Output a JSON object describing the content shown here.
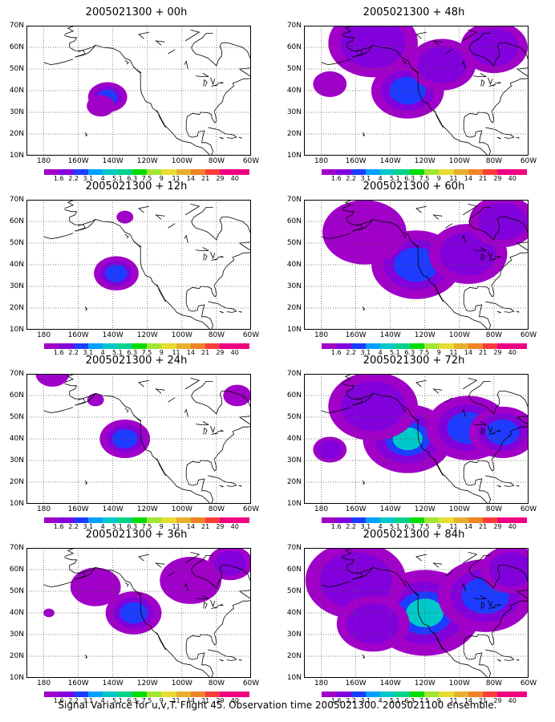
{
  "colorbar": {
    "labels": [
      "1.6",
      "2.2",
      "3.1",
      "4",
      "5.1",
      "6.3",
      "7.5",
      "9",
      "11",
      "14",
      "21",
      "29",
      "40"
    ],
    "colors": [
      "#a000c8",
      "#8200dc",
      "#1e3cff",
      "#00a0ff",
      "#00c8c8",
      "#00d28c",
      "#00dc00",
      "#a0e632",
      "#e6dc32",
      "#e6af2d",
      "#f08228",
      "#fa3c3c",
      "#f00082"
    ]
  },
  "axes": {
    "y_labels": [
      "70N",
      "60N",
      "50N",
      "40N",
      "30N",
      "20N",
      "10N"
    ],
    "x_labels": [
      "180",
      "160W",
      "140W",
      "120W",
      "100W",
      "80W",
      "60W"
    ]
  },
  "panels": [
    {
      "title": "2005021300 + 00h",
      "blobs": [
        {
          "lon": -143,
          "lat": 37,
          "r": 0.7,
          "lvl": 2
        },
        {
          "lon": -147,
          "lat": 33,
          "r": 0.5,
          "lvl": 0
        }
      ]
    },
    {
      "title": "2005021300 + 48h",
      "blobs": [
        {
          "lon": -150,
          "lat": 62,
          "r": 1.6,
          "lvl": 1
        },
        {
          "lon": -130,
          "lat": 40,
          "r": 1.3,
          "lvl": 2
        },
        {
          "lon": -110,
          "lat": 52,
          "r": 1.2,
          "lvl": 1
        },
        {
          "lon": -80,
          "lat": 60,
          "r": 1.2,
          "lvl": 1
        },
        {
          "lon": -175,
          "lat": 43,
          "r": 0.6,
          "lvl": 0
        }
      ]
    },
    {
      "title": "2005021300 + 12h",
      "blobs": [
        {
          "lon": -138,
          "lat": 36,
          "r": 0.8,
          "lvl": 2
        },
        {
          "lon": -133,
          "lat": 62,
          "r": 0.3,
          "lvl": 0
        }
      ]
    },
    {
      "title": "2005021300 + 60h",
      "blobs": [
        {
          "lon": -125,
          "lat": 40,
          "r": 1.6,
          "lvl": 2
        },
        {
          "lon": -155,
          "lat": 55,
          "r": 1.5,
          "lvl": 0
        },
        {
          "lon": -95,
          "lat": 45,
          "r": 1.4,
          "lvl": 1
        },
        {
          "lon": -75,
          "lat": 60,
          "r": 1.2,
          "lvl": 1
        }
      ]
    },
    {
      "title": "2005021300 + 24h",
      "blobs": [
        {
          "lon": -133,
          "lat": 40,
          "r": 0.9,
          "lvl": 2
        },
        {
          "lon": -175,
          "lat": 70,
          "r": 0.6,
          "lvl": 0
        },
        {
          "lon": -68,
          "lat": 60,
          "r": 0.5,
          "lvl": 0
        },
        {
          "lon": -150,
          "lat": 58,
          "r": 0.3,
          "lvl": 0
        }
      ]
    },
    {
      "title": "2005021300 + 72h",
      "blobs": [
        {
          "lon": -130,
          "lat": 40,
          "r": 1.6,
          "lvl": 3
        },
        {
          "lon": -150,
          "lat": 55,
          "r": 1.6,
          "lvl": 1
        },
        {
          "lon": -95,
          "lat": 45,
          "r": 1.5,
          "lvl": 2
        },
        {
          "lon": -75,
          "lat": 43,
          "r": 1.2,
          "lvl": 2
        },
        {
          "lon": -175,
          "lat": 35,
          "r": 0.6,
          "lvl": 1
        }
      ]
    },
    {
      "title": "2005021300 + 36h",
      "blobs": [
        {
          "lon": -128,
          "lat": 40,
          "r": 1.0,
          "lvl": 2
        },
        {
          "lon": -150,
          "lat": 52,
          "r": 0.9,
          "lvl": 0
        },
        {
          "lon": -95,
          "lat": 55,
          "r": 1.1,
          "lvl": 0
        },
        {
          "lon": -72,
          "lat": 63,
          "r": 0.8,
          "lvl": 1
        },
        {
          "lon": -177,
          "lat": 40,
          "r": 0.2,
          "lvl": 0
        }
      ]
    },
    {
      "title": "2005021300 + 84h",
      "blobs": [
        {
          "lon": -120,
          "lat": 40,
          "r": 2.0,
          "lvl": 3
        },
        {
          "lon": -160,
          "lat": 55,
          "r": 1.8,
          "lvl": 1
        },
        {
          "lon": -85,
          "lat": 48,
          "r": 1.7,
          "lvl": 2
        },
        {
          "lon": -150,
          "lat": 35,
          "r": 1.3,
          "lvl": 1
        },
        {
          "lon": -70,
          "lat": 60,
          "r": 1.1,
          "lvl": 1
        }
      ]
    }
  ],
  "caption": "Signal Variance for u,v,T. Flight 45. Observation time 2005021300. 2005021100 ensemble."
}
